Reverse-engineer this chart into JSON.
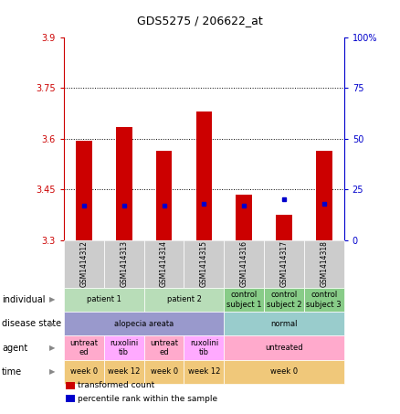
{
  "title": "GDS5275 / 206622_at",
  "samples": [
    "GSM1414312",
    "GSM1414313",
    "GSM1414314",
    "GSM1414315",
    "GSM1414316",
    "GSM1414317",
    "GSM1414318"
  ],
  "red_values": [
    3.595,
    3.635,
    3.565,
    3.68,
    3.435,
    3.375,
    3.565
  ],
  "blue_values": [
    17,
    17,
    17,
    18,
    17,
    20,
    18
  ],
  "ylim_left": [
    3.3,
    3.9
  ],
  "ylim_right": [
    0,
    100
  ],
  "yticks_left": [
    3.3,
    3.45,
    3.6,
    3.75,
    3.9
  ],
  "yticks_right": [
    0,
    25,
    50,
    75,
    100
  ],
  "ytick_labels_left": [
    "3.3",
    "3.45",
    "3.6",
    "3.75",
    "3.9"
  ],
  "ytick_labels_right": [
    "0",
    "25",
    "50",
    "75",
    "100%"
  ],
  "hlines": [
    3.45,
    3.6,
    3.75
  ],
  "bar_width": 0.4,
  "left_axis_color": "#cc0000",
  "right_axis_color": "#0000cc",
  "bar_color_red": "#cc0000",
  "bar_color_blue": "#0000cc",
  "bar_bottom": 3.3,
  "annotation_rows": [
    {
      "label": "individual",
      "cells": [
        {
          "text": "patient 1",
          "span": [
            0,
            1
          ],
          "color": "#b8ddb8"
        },
        {
          "text": "patient 2",
          "span": [
            2,
            3
          ],
          "color": "#b8ddb8"
        },
        {
          "text": "control\nsubject 1",
          "span": [
            4,
            4
          ],
          "color": "#88cc88"
        },
        {
          "text": "control\nsubject 2",
          "span": [
            5,
            5
          ],
          "color": "#88cc88"
        },
        {
          "text": "control\nsubject 3",
          "span": [
            6,
            6
          ],
          "color": "#88cc88"
        }
      ]
    },
    {
      "label": "disease state",
      "cells": [
        {
          "text": "alopecia areata",
          "span": [
            0,
            3
          ],
          "color": "#9999cc"
        },
        {
          "text": "normal",
          "span": [
            4,
            6
          ],
          "color": "#99cccc"
        }
      ]
    },
    {
      "label": "agent",
      "cells": [
        {
          "text": "untreat\ned",
          "span": [
            0,
            0
          ],
          "color": "#ffaacc"
        },
        {
          "text": "ruxolini\ntib",
          "span": [
            1,
            1
          ],
          "color": "#ffaaff"
        },
        {
          "text": "untreat\ned",
          "span": [
            2,
            2
          ],
          "color": "#ffaacc"
        },
        {
          "text": "ruxolini\ntib",
          "span": [
            3,
            3
          ],
          "color": "#ffaaff"
        },
        {
          "text": "untreated",
          "span": [
            4,
            6
          ],
          "color": "#ffaacc"
        }
      ]
    },
    {
      "label": "time",
      "cells": [
        {
          "text": "week 0",
          "span": [
            0,
            0
          ],
          "color": "#f0c87a"
        },
        {
          "text": "week 12",
          "span": [
            1,
            1
          ],
          "color": "#f0c87a"
        },
        {
          "text": "week 0",
          "span": [
            2,
            2
          ],
          "color": "#f0c87a"
        },
        {
          "text": "week 12",
          "span": [
            3,
            3
          ],
          "color": "#f0c87a"
        },
        {
          "text": "week 0",
          "span": [
            4,
            6
          ],
          "color": "#f0c87a"
        }
      ]
    }
  ],
  "legend": [
    {
      "color": "#cc0000",
      "label": "transformed count"
    },
    {
      "color": "#0000cc",
      "label": "percentile rank within the sample"
    }
  ],
  "bg_color": "#ffffff"
}
